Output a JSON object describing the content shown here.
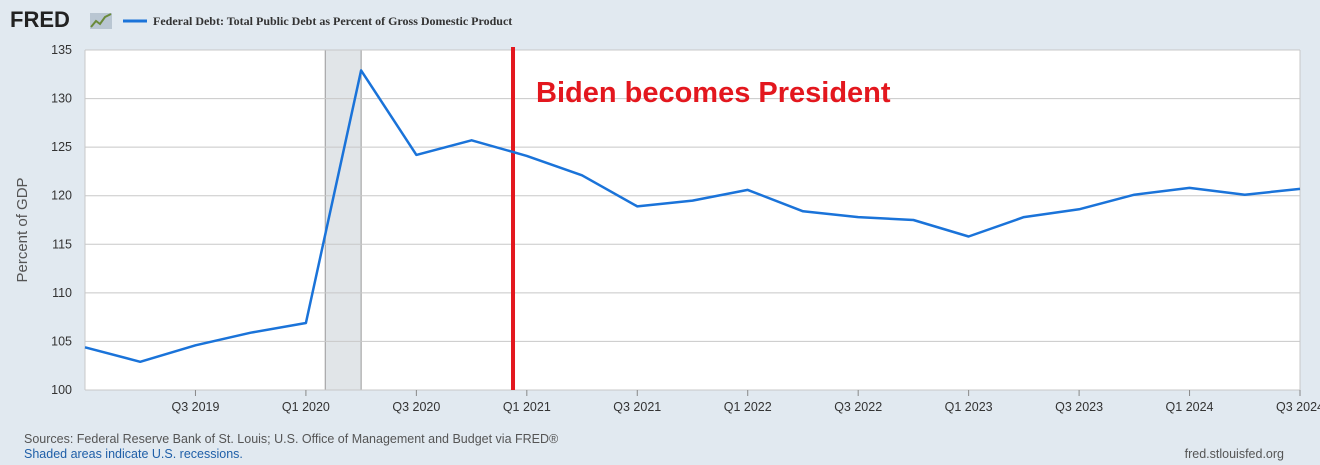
{
  "header": {
    "logo": "FRED",
    "legend_label": "Federal Debt: Total Public Debt as Percent of Gross Domestic Product"
  },
  "colors": {
    "series": "#1a73d9",
    "annotation": "#e3171e",
    "recession": "#e1e5e8",
    "background": "#e1e9f0",
    "plot": "#ffffff"
  },
  "chart_data": {
    "type": "line",
    "title": "Federal Debt: Total Public Debt as Percent of Gross Domestic Product",
    "ylabel": "Percent of GDP",
    "xlabel": "",
    "ylim": [
      100,
      135
    ],
    "y_ticks": [
      100,
      105,
      110,
      115,
      120,
      125,
      130,
      135
    ],
    "x_tick_labels": [
      "Q3 2019",
      "Q1 2020",
      "Q3 2020",
      "Q1 2021",
      "Q3 2021",
      "Q1 2022",
      "Q3 2022",
      "Q1 2023",
      "Q3 2023",
      "Q1 2024",
      "Q3 2024"
    ],
    "x_tick_positions": [
      2,
      4,
      6,
      8,
      10,
      12,
      14,
      16,
      18,
      20,
      22
    ],
    "x_range": [
      0,
      22
    ],
    "series": [
      {
        "name": "Federal Debt: Total Public Debt as Percent of Gross Domestic Product",
        "x": [
          0,
          1,
          2,
          3,
          4,
          5,
          6,
          7,
          8,
          9,
          10,
          11,
          12,
          13,
          14,
          15,
          16,
          17,
          18,
          19,
          20,
          21,
          22
        ],
        "quarters": [
          "Q1 2019",
          "Q2 2019",
          "Q3 2019",
          "Q4 2019",
          "Q1 2020",
          "Q2 2020",
          "Q3 2020",
          "Q4 2020",
          "Q1 2021",
          "Q2 2021",
          "Q3 2021",
          "Q4 2021",
          "Q1 2022",
          "Q2 2022",
          "Q3 2022",
          "Q4 2022",
          "Q1 2023",
          "Q2 2023",
          "Q3 2023",
          "Q4 2023",
          "Q1 2024",
          "Q2 2024",
          "Q3 2024"
        ],
        "values": [
          104.4,
          102.9,
          104.6,
          105.9,
          106.9,
          132.9,
          124.2,
          125.7,
          124.1,
          122.1,
          118.9,
          119.5,
          120.6,
          118.4,
          117.8,
          117.5,
          115.8,
          117.8,
          118.6,
          120.1,
          120.8,
          120.1,
          120.7
        ]
      }
    ],
    "recession_shading": {
      "from": 4.35,
      "to": 5.0
    },
    "annotation": {
      "text": "Biden becomes President",
      "x": 7.75
    }
  },
  "footer": {
    "sources": "Sources: Federal Reserve Bank of St. Louis; U.S. Office of Management and Budget via FRED®",
    "shaded": "Shaded areas indicate U.S. recessions.",
    "site": "fred.stlouisfed.org"
  }
}
